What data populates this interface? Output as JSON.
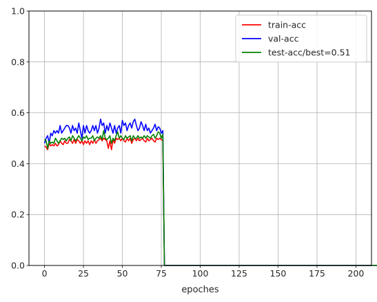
{
  "chart_data": {
    "type": "line",
    "title": "",
    "xlabel": "epoches",
    "ylabel": "",
    "xlim": [
      -10,
      210
    ],
    "ylim": [
      0,
      1
    ],
    "xticks": [
      0,
      25,
      50,
      75,
      100,
      125,
      150,
      175,
      200
    ],
    "yticks": [
      0.0,
      0.2,
      0.4,
      0.6,
      0.8,
      1.0
    ],
    "grid": true,
    "legend_position": "top-right",
    "series": [
      {
        "name": "train-acc",
        "color": "#ff0000",
        "values": [
          0.47,
          0.465,
          0.455,
          0.48,
          0.47,
          0.475,
          0.47,
          0.48,
          0.47,
          0.475,
          0.49,
          0.48,
          0.475,
          0.49,
          0.48,
          0.48,
          0.495,
          0.49,
          0.48,
          0.495,
          0.48,
          0.495,
          0.49,
          0.48,
          0.49,
          0.475,
          0.49,
          0.48,
          0.49,
          0.475,
          0.49,
          0.48,
          0.495,
          0.48,
          0.49,
          0.495,
          0.5,
          0.49,
          0.5,
          0.495,
          0.49,
          0.46,
          0.49,
          0.455,
          0.495,
          0.48,
          0.5,
          0.495,
          0.5,
          0.49,
          0.5,
          0.49,
          0.485,
          0.5,
          0.49,
          0.5,
          0.48,
          0.495,
          0.5,
          0.49,
          0.5,
          0.49,
          0.495,
          0.5,
          0.49,
          0.485,
          0.5,
          0.49,
          0.495,
          0.5,
          0.49,
          0.485,
          0.5,
          0.495,
          0.5,
          0.495,
          0.49,
          0.0,
          0.0,
          0.0,
          0.0,
          0.0,
          0.0,
          0.0,
          0.0,
          0.0,
          0.0,
          0.0,
          0.0,
          0.0,
          0.0,
          0.0,
          0.0,
          0.0,
          0.0,
          0.0,
          0.0,
          0.0,
          0.0,
          0.0,
          0.0,
          0.0,
          0.0,
          0.0,
          0.0,
          0.0,
          0.0,
          0.0,
          0.0,
          0.0,
          0.0,
          0.0,
          0.0,
          0.0,
          0.0,
          0.0,
          0.0,
          0.0,
          0.0,
          0.0,
          0.0,
          0.0,
          0.0,
          0.0,
          0.0,
          0.0,
          0.0,
          0.0,
          0.0,
          0.0,
          0.0,
          0.0,
          0.0,
          0.0,
          0.0,
          0.0,
          0.0,
          0.0,
          0.0,
          0.0,
          0.0,
          0.0,
          0.0,
          0.0,
          0.0,
          0.0,
          0.0,
          0.0,
          0.0,
          0.0,
          0.0,
          0.0,
          0.0,
          0.0,
          0.0,
          0.0,
          0.0,
          0.0,
          0.0,
          0.0,
          0.0,
          0.0,
          0.0,
          0.0,
          0.0,
          0.0,
          0.0,
          0.0,
          0.0,
          0.0,
          0.0,
          0.0,
          0.0,
          0.0,
          0.0,
          0.0,
          0.0,
          0.0,
          0.0,
          0.0,
          0.0,
          0.0,
          0.0,
          0.0,
          0.0,
          0.0,
          0.0,
          0.0,
          0.0,
          0.0,
          0.0,
          0.0,
          0.0,
          0.0,
          0.0,
          0.0,
          0.0,
          0.0,
          0.0,
          0.0,
          0.0,
          0.0,
          0.0,
          0.0,
          0.0,
          0.0,
          0.0,
          0.0,
          0.0,
          0.0,
          0.0,
          0.0,
          0.0,
          0.0,
          0.0,
          0.0,
          0.0,
          0.0
        ]
      },
      {
        "name": "val-acc",
        "color": "#0000ff",
        "values": [
          0.48,
          0.5,
          0.51,
          0.48,
          0.52,
          0.51,
          0.53,
          0.52,
          0.53,
          0.52,
          0.55,
          0.52,
          0.53,
          0.54,
          0.55,
          0.55,
          0.54,
          0.52,
          0.55,
          0.53,
          0.54,
          0.52,
          0.56,
          0.53,
          0.5,
          0.55,
          0.52,
          0.55,
          0.53,
          0.52,
          0.53,
          0.55,
          0.53,
          0.55,
          0.52,
          0.54,
          0.575,
          0.55,
          0.56,
          0.52,
          0.55,
          0.53,
          0.56,
          0.54,
          0.52,
          0.55,
          0.52,
          0.54,
          0.55,
          0.52,
          0.57,
          0.55,
          0.56,
          0.53,
          0.55,
          0.56,
          0.54,
          0.565,
          0.575,
          0.55,
          0.53,
          0.54,
          0.565,
          0.55,
          0.53,
          0.555,
          0.53,
          0.54,
          0.52,
          0.53,
          0.54,
          0.555,
          0.53,
          0.545,
          0.54,
          0.52,
          0.53,
          0.0,
          0.0,
          0.0,
          0.0,
          0.0,
          0.0,
          0.0,
          0.0,
          0.0,
          0.0,
          0.0,
          0.0,
          0.0,
          0.0,
          0.0,
          0.0,
          0.0,
          0.0,
          0.0,
          0.0,
          0.0,
          0.0,
          0.0,
          0.0,
          0.0,
          0.0,
          0.0,
          0.0,
          0.0,
          0.0,
          0.0,
          0.0,
          0.0,
          0.0,
          0.0,
          0.0,
          0.0,
          0.0,
          0.0,
          0.0,
          0.0,
          0.0,
          0.0,
          0.0,
          0.0,
          0.0,
          0.0,
          0.0,
          0.0,
          0.0,
          0.0,
          0.0,
          0.0,
          0.0,
          0.0,
          0.0,
          0.0,
          0.0,
          0.0,
          0.0,
          0.0,
          0.0,
          0.0,
          0.0,
          0.0,
          0.0,
          0.0,
          0.0,
          0.0,
          0.0,
          0.0,
          0.0,
          0.0,
          0.0,
          0.0,
          0.0,
          0.0,
          0.0,
          0.0,
          0.0,
          0.0,
          0.0,
          0.0,
          0.0,
          0.0,
          0.0,
          0.0,
          0.0,
          0.0,
          0.0,
          0.0,
          0.0,
          0.0,
          0.0,
          0.0,
          0.0,
          0.0,
          0.0,
          0.0,
          0.0,
          0.0,
          0.0,
          0.0,
          0.0,
          0.0,
          0.0,
          0.0,
          0.0,
          0.0,
          0.0,
          0.0,
          0.0,
          0.0,
          0.0,
          0.0,
          0.0,
          0.0,
          0.0,
          0.0,
          0.0,
          0.0,
          0.0,
          0.0,
          0.0,
          0.0,
          0.0,
          0.0,
          0.0,
          0.0,
          0.0,
          0.0,
          0.0,
          0.0,
          0.0,
          0.0,
          0.0,
          0.0,
          0.0,
          0.0,
          0.0,
          0.0
        ]
      },
      {
        "name": "test-acc/best=0.51",
        "color": "#008000",
        "values": [
          0.495,
          0.49,
          0.46,
          0.49,
          0.48,
          0.485,
          0.48,
          0.5,
          0.49,
          0.48,
          0.49,
          0.5,
          0.495,
          0.5,
          0.49,
          0.5,
          0.505,
          0.49,
          0.51,
          0.5,
          0.49,
          0.5,
          0.51,
          0.5,
          0.49,
          0.505,
          0.5,
          0.51,
          0.495,
          0.5,
          0.5,
          0.51,
          0.49,
          0.5,
          0.505,
          0.5,
          0.51,
          0.495,
          0.53,
          0.5,
          0.495,
          0.5,
          0.51,
          0.48,
          0.5,
          0.49,
          0.51,
          0.525,
          0.5,
          0.51,
          0.5,
          0.495,
          0.51,
          0.5,
          0.505,
          0.51,
          0.49,
          0.51,
          0.5,
          0.5,
          0.51,
          0.5,
          0.505,
          0.5,
          0.51,
          0.5,
          0.51,
          0.505,
          0.5,
          0.51,
          0.515,
          0.5,
          0.51,
          0.525,
          0.52,
          0.5,
          0.515,
          0.0,
          0.0,
          0.0,
          0.0,
          0.0,
          0.0,
          0.0,
          0.0,
          0.0,
          0.0,
          0.0,
          0.0,
          0.0,
          0.0,
          0.0,
          0.0,
          0.0,
          0.0,
          0.0,
          0.0,
          0.0,
          0.0,
          0.0,
          0.0,
          0.0,
          0.0,
          0.0,
          0.0,
          0.0,
          0.0,
          0.0,
          0.0,
          0.0,
          0.0,
          0.0,
          0.0,
          0.0,
          0.0,
          0.0,
          0.0,
          0.0,
          0.0,
          0.0,
          0.0,
          0.0,
          0.0,
          0.0,
          0.0,
          0.0,
          0.0,
          0.0,
          0.0,
          0.0,
          0.0,
          0.0,
          0.0,
          0.0,
          0.0,
          0.0,
          0.0,
          0.0,
          0.0,
          0.0,
          0.0,
          0.0,
          0.0,
          0.0,
          0.0,
          0.0,
          0.0,
          0.0,
          0.0,
          0.0,
          0.0,
          0.0,
          0.0,
          0.0,
          0.0,
          0.0,
          0.0,
          0.0,
          0.0,
          0.0,
          0.0,
          0.0,
          0.0,
          0.0,
          0.0,
          0.0,
          0.0,
          0.0,
          0.0,
          0.0,
          0.0,
          0.0,
          0.0,
          0.0,
          0.0,
          0.0,
          0.0,
          0.0,
          0.0,
          0.0,
          0.0,
          0.0,
          0.0,
          0.0,
          0.0,
          0.0,
          0.0,
          0.0,
          0.0,
          0.0,
          0.0,
          0.0,
          0.0,
          0.0,
          0.0,
          0.0,
          0.0,
          0.0,
          0.0,
          0.0,
          0.0,
          0.0,
          0.0,
          0.0,
          0.0,
          0.0,
          0.0,
          0.0,
          0.0,
          0.0,
          0.0,
          0.0,
          0.0,
          0.0,
          0.0,
          0.0,
          0.0,
          0.0,
          0.0,
          0.0,
          0.0,
          0.0,
          0.0,
          0.0
        ]
      }
    ]
  }
}
